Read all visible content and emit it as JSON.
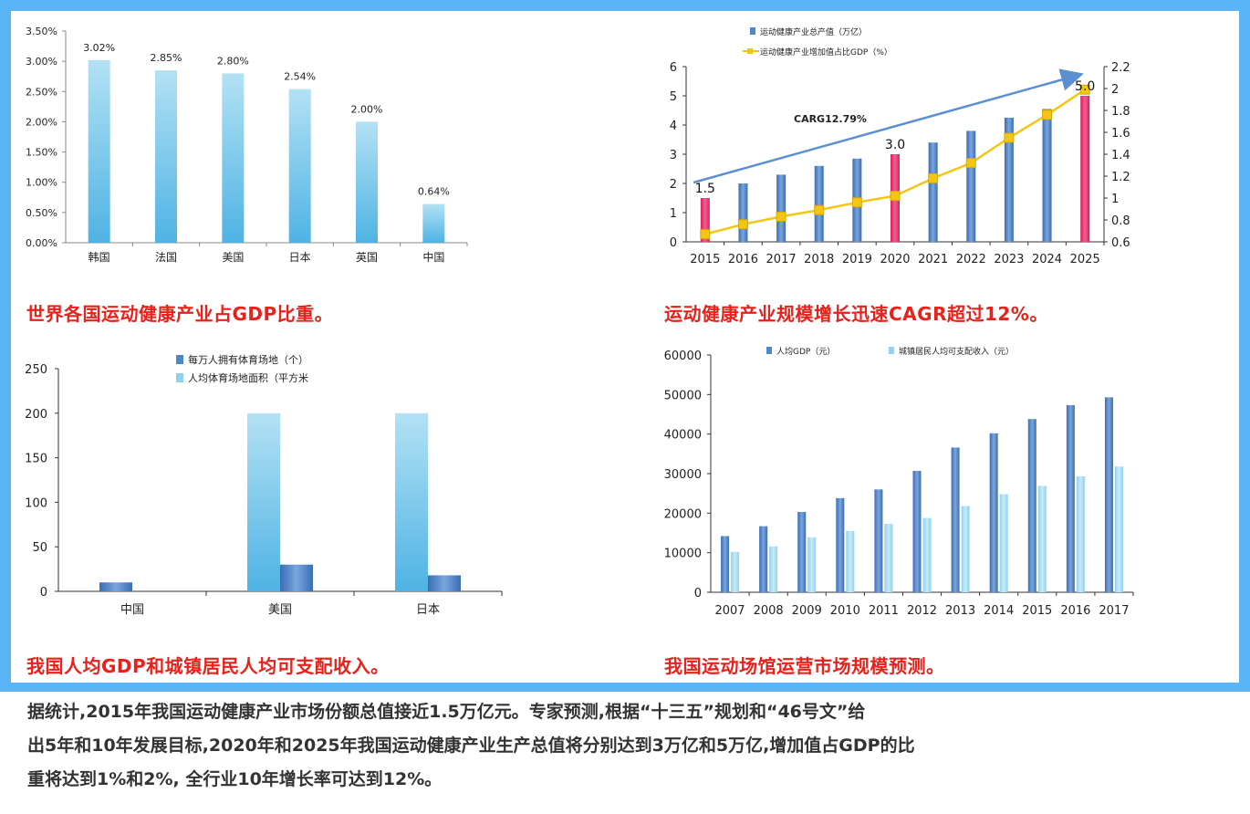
{
  "colors": {
    "frame": "#5ab4f6",
    "caption": "#e8211a",
    "lightBar": "#8fd1ee",
    "darkBar": "#4e86c8",
    "pinkBar": "#e8336b",
    "lineYellow": "#f2c613",
    "arrowBlue": "#5b8fd2"
  },
  "captions": {
    "c1": "世界各国运动健康产业占GDP比重。",
    "c2": "运动健康产业规模增长迅速CAGR超过12%。",
    "c3": "我国人均GDP和城镇居民人均可支配收入。",
    "c4": "我国运动场馆运营市场规模预测。"
  },
  "paragraph": {
    "line1": "据统计,2015年我国运动健康产业市场份额总值接近1.5万亿元。专家预测,根据“十三五”规划和“46号文”给",
    "line2": "出5年和10年发展目标,2020年和2025年我国运动健康产业生产总值将分别达到3万亿和5万亿,增加值占GDP的比",
    "line3": "重将达到1%和2%, 全行业10年增长率可达到12%。"
  },
  "chart_data": [
    {
      "type": "bar",
      "categories": [
        "韩国",
        "法国",
        "美国",
        "日本",
        "英国",
        "中国"
      ],
      "values": [
        3.02,
        2.85,
        2.8,
        2.54,
        2.0,
        0.64
      ],
      "value_labels": [
        "3.02%",
        "2.85%",
        "2.80%",
        "2.54%",
        "2.00%",
        "0.64%"
      ],
      "yticks": [
        "0.00%",
        "0.50%",
        "1.00%",
        "1.50%",
        "2.00%",
        "2.50%",
        "3.00%",
        "3.50%"
      ],
      "ylim": [
        0,
        3.5
      ]
    },
    {
      "type": "bar",
      "categories": [
        "2015",
        "2016",
        "2017",
        "2018",
        "2019",
        "2020",
        "2021",
        "2022",
        "2023",
        "2024",
        "2025"
      ],
      "series": [
        {
          "name": "运动健康产业总产值（万亿）",
          "type": "bar",
          "values": [
            1.5,
            2.0,
            2.3,
            2.6,
            2.85,
            3.0,
            3.4,
            3.8,
            4.25,
            4.55,
            5.0
          ]
        },
        {
          "name": "运动健康产业增加值占比GDP（%）",
          "type": "line",
          "values": [
            0.67,
            0.76,
            0.83,
            0.89,
            0.96,
            1.02,
            1.18,
            1.32,
            1.55,
            1.76,
            1.99
          ]
        }
      ],
      "highlight": [
        "2015",
        "2020",
        "2025"
      ],
      "value_labels": [
        "1.5",
        "3.0",
        "5.0"
      ],
      "annotation": "CARG12.79%",
      "yticks_left": [
        "0",
        "1",
        "2",
        "3",
        "4",
        "5",
        "6"
      ],
      "yticks_right": [
        "0.6",
        "0.8",
        "1",
        "1.2",
        "1.4",
        "1.6",
        "1.8",
        "2",
        "2.2"
      ],
      "ylim": [
        0,
        6
      ],
      "ylim_right": [
        0.6,
        2.2
      ]
    },
    {
      "type": "bar",
      "categories": [
        "中国",
        "美国",
        "日本"
      ],
      "series": [
        {
          "name": "每万人拥有体育场地（个）",
          "values": [
            10,
            30,
            18
          ]
        },
        {
          "name": "人均体育场地面积（平方米",
          "values": [
            0,
            200,
            200
          ]
        }
      ],
      "yticks": [
        "0",
        "50",
        "100",
        "150",
        "200",
        "250"
      ],
      "ylim": [
        0,
        250
      ]
    },
    {
      "type": "bar",
      "categories": [
        "2007",
        "2008",
        "2009",
        "2010",
        "2011",
        "2012",
        "2013",
        "2014",
        "2015",
        "2016",
        "2017"
      ],
      "series": [
        {
          "name": "人均GDP（元）",
          "values": [
            14200,
            16700,
            20300,
            23800,
            26000,
            30700,
            36600,
            40200,
            43800,
            47300,
            49300
          ]
        },
        {
          "name": "城镇居民人均可支配收入（元）",
          "values": [
            10200,
            11600,
            13900,
            15500,
            17300,
            18800,
            21800,
            24800,
            26900,
            29300,
            31800
          ]
        }
      ],
      "yticks": [
        "0",
        "10000",
        "20000",
        "30000",
        "40000",
        "50000",
        "60000"
      ],
      "ylim": [
        0,
        60000
      ]
    }
  ]
}
